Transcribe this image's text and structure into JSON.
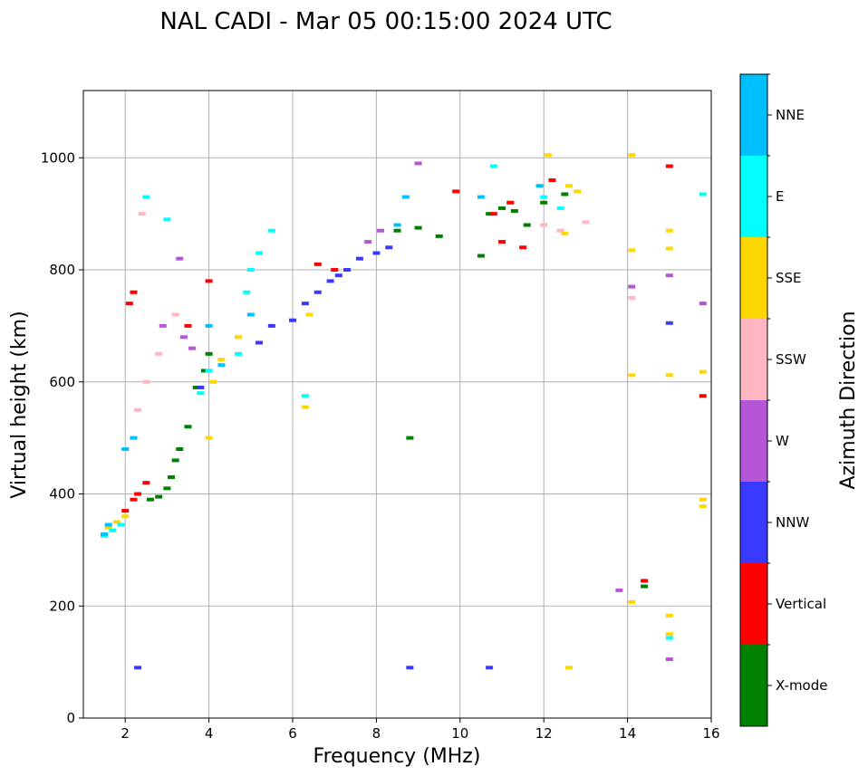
{
  "chart_data": {
    "type": "scatter",
    "title": "NAL CADI - Mar 05 00:15:00 2024 UTC",
    "xlabel": "Frequency (MHz)",
    "ylabel": "Virtual height (km)",
    "xlim": [
      1,
      16
    ],
    "ylim": [
      0,
      1120
    ],
    "xticks": [
      2,
      4,
      6,
      8,
      10,
      12,
      14,
      16
    ],
    "yticks": [
      0,
      200,
      400,
      600,
      800,
      1000
    ],
    "grid": true,
    "colorbar": {
      "label": "Azimuth Direction",
      "categories": [
        {
          "name": "X-mode",
          "color": "#008000"
        },
        {
          "name": "Vertical",
          "color": "#ff0000"
        },
        {
          "name": "NNW",
          "color": "#3a3aff"
        },
        {
          "name": "W",
          "color": "#b456d6"
        },
        {
          "name": "SSW",
          "color": "#ffb6c1"
        },
        {
          "name": "SSE",
          "color": "#ffd700"
        },
        {
          "name": "E",
          "color": "#00ffff"
        },
        {
          "name": "NNE",
          "color": "#00bfff"
        }
      ]
    },
    "series": [
      {
        "name": "X-mode",
        "points": [
          [
            2.6,
            390
          ],
          [
            2.8,
            395
          ],
          [
            3.0,
            410
          ],
          [
            3.1,
            430
          ],
          [
            3.2,
            460
          ],
          [
            3.3,
            480
          ],
          [
            3.5,
            520
          ],
          [
            3.7,
            590
          ],
          [
            3.9,
            620
          ],
          [
            4.0,
            650
          ],
          [
            8.8,
            500
          ],
          [
            10.5,
            825
          ],
          [
            10.7,
            900
          ],
          [
            11.0,
            910
          ],
          [
            11.3,
            905
          ],
          [
            11.6,
            880
          ],
          [
            12.0,
            920
          ],
          [
            12.5,
            935
          ],
          [
            14.4,
            235
          ],
          [
            9.0,
            875
          ],
          [
            9.5,
            860
          ],
          [
            8.5,
            870
          ]
        ]
      },
      {
        "name": "Vertical",
        "points": [
          [
            2.0,
            370
          ],
          [
            2.2,
            390
          ],
          [
            2.3,
            400
          ],
          [
            2.5,
            420
          ],
          [
            2.1,
            740
          ],
          [
            2.2,
            760
          ],
          [
            3.5,
            700
          ],
          [
            4.0,
            780
          ],
          [
            6.6,
            810
          ],
          [
            7.0,
            800
          ],
          [
            9.9,
            940
          ],
          [
            10.8,
            900
          ],
          [
            11.2,
            920
          ],
          [
            11.0,
            850
          ],
          [
            11.5,
            840
          ],
          [
            12.2,
            960
          ],
          [
            14.4,
            245
          ],
          [
            15.0,
            985
          ],
          [
            15.8,
            575
          ]
        ]
      },
      {
        "name": "NNW",
        "points": [
          [
            2.3,
            90
          ],
          [
            5.2,
            670
          ],
          [
            5.5,
            700
          ],
          [
            6.0,
            710
          ],
          [
            6.3,
            740
          ],
          [
            6.6,
            760
          ],
          [
            6.9,
            780
          ],
          [
            7.1,
            790
          ],
          [
            7.3,
            800
          ],
          [
            7.6,
            820
          ],
          [
            8.0,
            830
          ],
          [
            8.3,
            840
          ],
          [
            8.8,
            90
          ],
          [
            10.7,
            90
          ],
          [
            15.0,
            705
          ],
          [
            3.8,
            590
          ]
        ]
      },
      {
        "name": "W",
        "points": [
          [
            3.3,
            820
          ],
          [
            3.4,
            680
          ],
          [
            3.6,
            660
          ],
          [
            2.9,
            700
          ],
          [
            7.8,
            850
          ],
          [
            8.1,
            870
          ],
          [
            9.0,
            990
          ],
          [
            13.8,
            228
          ],
          [
            14.1,
            770
          ],
          [
            15.0,
            790
          ],
          [
            15.8,
            740
          ],
          [
            15.0,
            105
          ]
        ]
      },
      {
        "name": "SSW",
        "points": [
          [
            2.3,
            550
          ],
          [
            2.5,
            600
          ],
          [
            2.8,
            650
          ],
          [
            3.2,
            720
          ],
          [
            2.4,
            900
          ],
          [
            12.0,
            880
          ],
          [
            12.4,
            870
          ],
          [
            13.0,
            885
          ],
          [
            14.1,
            750
          ]
        ]
      },
      {
        "name": "SSE",
        "points": [
          [
            1.6,
            340
          ],
          [
            1.8,
            350
          ],
          [
            2.0,
            360
          ],
          [
            4.0,
            500
          ],
          [
            4.1,
            600
          ],
          [
            4.3,
            640
          ],
          [
            4.7,
            680
          ],
          [
            6.3,
            555
          ],
          [
            6.4,
            720
          ],
          [
            12.1,
            1005
          ],
          [
            12.6,
            950
          ],
          [
            12.8,
            940
          ],
          [
            14.1,
            1005
          ],
          [
            14.1,
            835
          ],
          [
            15.0,
            870
          ],
          [
            15.0,
            838
          ],
          [
            14.1,
            612
          ],
          [
            15.0,
            612
          ],
          [
            15.8,
            618
          ],
          [
            15.8,
            390
          ],
          [
            15.8,
            378
          ],
          [
            14.1,
            207
          ],
          [
            15.0,
            183
          ],
          [
            15.0,
            150
          ],
          [
            12.6,
            90
          ],
          [
            12.5,
            865
          ]
        ]
      },
      {
        "name": "E",
        "points": [
          [
            1.5,
            325
          ],
          [
            1.7,
            335
          ],
          [
            1.9,
            345
          ],
          [
            2.5,
            930
          ],
          [
            3.0,
            890
          ],
          [
            3.8,
            580
          ],
          [
            4.0,
            620
          ],
          [
            4.7,
            650
          ],
          [
            4.9,
            760
          ],
          [
            5.0,
            800
          ],
          [
            5.2,
            830
          ],
          [
            6.3,
            575
          ],
          [
            5.5,
            870
          ],
          [
            10.8,
            985
          ],
          [
            12.0,
            930
          ],
          [
            12.4,
            910
          ],
          [
            15.0,
            143
          ],
          [
            15.8,
            935
          ]
        ]
      },
      {
        "name": "NNE",
        "points": [
          [
            1.5,
            328
          ],
          [
            1.6,
            345
          ],
          [
            2.0,
            480
          ],
          [
            2.2,
            500
          ],
          [
            4.0,
            700
          ],
          [
            4.3,
            630
          ],
          [
            8.7,
            930
          ],
          [
            8.5,
            880
          ],
          [
            10.5,
            930
          ],
          [
            11.9,
            950
          ],
          [
            5.0,
            720
          ]
        ]
      }
    ]
  }
}
